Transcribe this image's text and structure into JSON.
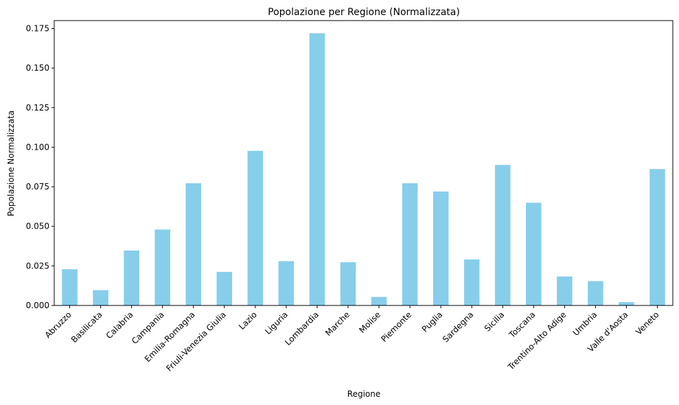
{
  "chart_data": {
    "type": "bar",
    "title": "Popolazione per Regione (Normalizzata)",
    "xlabel": "Regione",
    "ylabel": "Popolazione Normalizzata",
    "categories": [
      "Abruzzo",
      "Basilicata",
      "Calabria",
      "Campania",
      "Emilia-Romagna",
      "Friuli-Venezia Giulia",
      "Lazio",
      "Liguria",
      "Lombardia",
      "Marche",
      "Molise",
      "Piemonte",
      "Puglia",
      "Sardegna",
      "Sicilia",
      "Toscana",
      "Trentino-Alto Adige",
      "Umbria",
      "Valle d'Aosta",
      "Veneto"
    ],
    "values": [
      0.0229,
      0.0097,
      0.0347,
      0.048,
      0.0772,
      0.0212,
      0.0977,
      0.028,
      0.172,
      0.0273,
      0.0054,
      0.0772,
      0.072,
      0.0291,
      0.0888,
      0.0649,
      0.0183,
      0.0154,
      0.0021,
      0.0862
    ],
    "ylim": [
      0,
      0.18
    ],
    "yticks": [
      "0.000",
      "0.025",
      "0.050",
      "0.075",
      "0.100",
      "0.125",
      "0.150",
      "0.175"
    ],
    "bar_color": "#87ceeb",
    "grid": false,
    "legend": "none"
  }
}
